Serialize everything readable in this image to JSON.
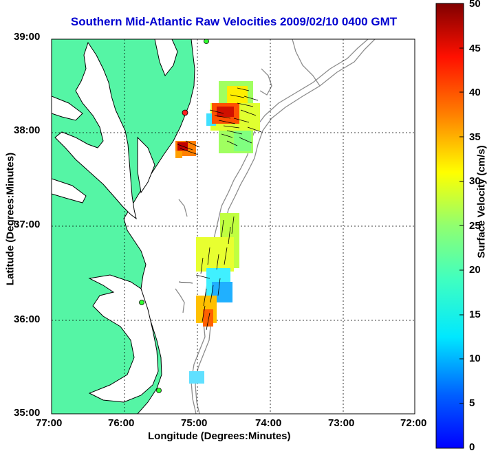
{
  "title": "Southern Mid-Atlantic Raw Velocities 2009/02/10 0400 GMT",
  "ylabel": "Latitude (Degrees:Minutes)",
  "xlabel": "Longitude (Degrees:Minutes)",
  "colorbar_label": "Surface Velocity (cm/s)",
  "lat_ticks": [
    "39:00",
    "38:00",
    "37:00",
    "36:00",
    "35:00"
  ],
  "lon_ticks": [
    "77:00",
    "76:00",
    "75:00",
    "74:00",
    "73:00",
    "72:00"
  ],
  "colorbar_ticks": [
    "50",
    "45",
    "40",
    "35",
    "30",
    "25",
    "20",
    "15",
    "10",
    "5",
    "0"
  ],
  "colors": {
    "land": "#55f5a5",
    "title": "#0000d0",
    "contour": "#8c8c8c"
  },
  "map": {
    "lon_range": [
      -77,
      -72
    ],
    "lat_range": [
      35,
      39
    ],
    "velocity_range_cms": [
      0,
      50
    ],
    "grid": true
  }
}
